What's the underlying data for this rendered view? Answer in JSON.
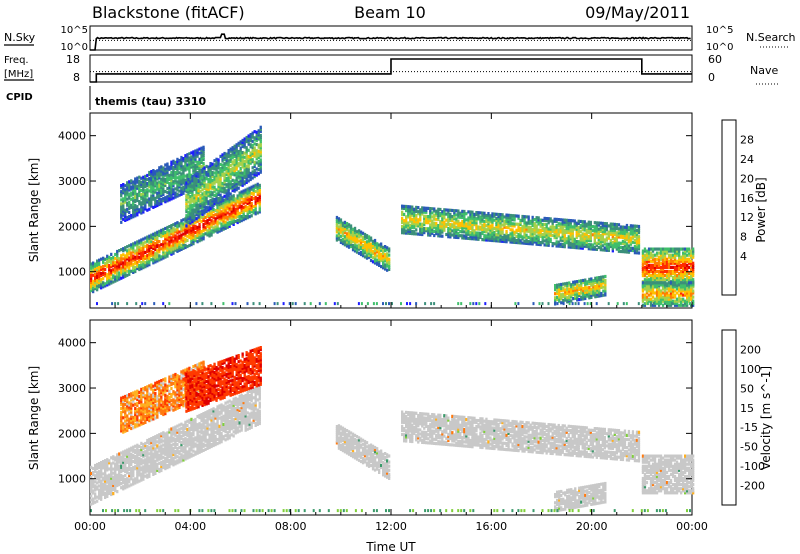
{
  "header": {
    "station": "Blackstone (fitACF)",
    "beam": "Beam 10",
    "date": "09/May/2011"
  },
  "status_panels": {
    "nsky_label": "N.Sky",
    "nsearch_label": "N.Search",
    "freq_label_1": "Freq.",
    "freq_label_2": "[MHz]",
    "nave_label": "Nave",
    "cpid_label": "CPID",
    "cpid_text": "themis (tau) 3310",
    "noise_ticks_left": [
      "10^5",
      "10^0"
    ],
    "noise_ticks_right": [
      "10^5",
      "10^0"
    ],
    "freq_ticks": [
      "18",
      "8"
    ],
    "nave_ticks": [
      "60",
      "0"
    ]
  },
  "colors": {
    "power_scale": [
      "#1d1dff",
      "#2a5ab8",
      "#3b8f7a",
      "#3fbf6b",
      "#a6d14a",
      "#ffc000",
      "#ff7f00",
      "#ff2a00",
      "#e00000"
    ],
    "velocity_scale": [
      "#1540c8",
      "#2e7fd6",
      "#3a9a6a",
      "#7fcf3a",
      "#c8c8c8",
      "#ffb020",
      "#ff7a10",
      "#ff3a00",
      "#e00000"
    ]
  },
  "chart_data": [
    {
      "type": "line",
      "title": "Blackstone (fitACF)  Beam 10  09/May/2011",
      "description_series": [
        {
          "name": "N.Sky",
          "x": [
            0,
            0.25,
            3,
            5.3,
            8,
            12,
            16,
            20,
            24
          ],
          "values": [
            1,
            300,
            300,
            400,
            300,
            300,
            300,
            300,
            300
          ]
        },
        {
          "name": "N.Search",
          "x": [
            0,
            24
          ],
          "values": [
            100,
            100
          ]
        }
      ],
      "ylim": [
        1,
        100000
      ],
      "yscale": "log"
    },
    {
      "type": "line",
      "series": [
        {
          "name": "Freq.",
          "x": [
            0,
            0.25,
            0.25,
            12.0,
            12.0,
            22.0,
            22.0,
            24
          ],
          "values": [
            8,
            8,
            11,
            11,
            16.5,
            16.5,
            11,
            11
          ]
        },
        {
          "name": "Nave",
          "x": [
            0,
            24
          ],
          "values": [
            23,
            23
          ]
        }
      ],
      "ylim_left": [
        8,
        18
      ],
      "ylim_right": [
        0,
        60
      ]
    },
    {
      "type": "heatmap",
      "quantity": "Power",
      "ylabel": "Slant Range [km]",
      "colorbar_label": "Power [dB]",
      "colorbar_ticks": [
        4,
        8,
        12,
        16,
        20,
        24,
        28
      ],
      "clim": [
        0,
        30
      ],
      "yticks": [
        1000,
        2000,
        3000,
        4000
      ],
      "ylim": [
        200,
        4500
      ],
      "xlim": [
        0,
        24
      ],
      "xticks": [
        "00:00",
        "04:00",
        "08:00",
        "12:00",
        "16:00",
        "20:00",
        "00:00"
      ],
      "echo_bands": [
        {
          "t0": 0.0,
          "t1": 6.8,
          "r0": 850,
          "r1": 2650,
          "width": 320,
          "peak_db": 28,
          "edge_db": 6
        },
        {
          "t0": 1.2,
          "t1": 4.5,
          "r0": 2500,
          "r1": 3350,
          "width": 420,
          "peak_db": 12,
          "edge_db": 4
        },
        {
          "t0": 3.8,
          "t1": 6.8,
          "r0": 2500,
          "r1": 3700,
          "width": 500,
          "peak_db": 16,
          "edge_db": 4
        },
        {
          "t0": 9.8,
          "t1": 11.9,
          "r0": 1950,
          "r1": 1250,
          "width": 260,
          "peak_db": 20,
          "edge_db": 6
        },
        {
          "t0": 12.4,
          "t1": 21.9,
          "r0": 2150,
          "r1": 1700,
          "width": 300,
          "peak_db": 18,
          "edge_db": 6
        },
        {
          "t0": 18.5,
          "t1": 20.5,
          "r0": 500,
          "r1": 700,
          "width": 220,
          "peak_db": 20,
          "edge_db": 6
        },
        {
          "t0": 22.0,
          "t1": 24.0,
          "r0": 1100,
          "r1": 1100,
          "width": 420,
          "peak_db": 26,
          "edge_db": 8
        },
        {
          "t0": 22.0,
          "t1": 24.0,
          "r0": 500,
          "r1": 500,
          "width": 250,
          "peak_db": 22,
          "edge_db": 8
        }
      ]
    },
    {
      "type": "heatmap",
      "quantity": "Velocity",
      "ylabel": "Slant Range [km]",
      "xlabel": "Time UT",
      "colorbar_label": "Velocity [m s^-1]",
      "colorbar_ticks": [
        200,
        100,
        50,
        15,
        -15,
        -50,
        -100,
        -200
      ],
      "yticks": [
        1000,
        2000,
        3000,
        4000
      ],
      "ylim": [
        200,
        4500
      ],
      "xlim": [
        0,
        24
      ],
      "xticks": [
        "00:00",
        "04:00",
        "08:00",
        "12:00",
        "16:00",
        "20:00",
        "00:00"
      ],
      "echo_bands": [
        {
          "t0": 0.0,
          "t1": 6.8,
          "r0": 850,
          "r1": 2650,
          "width": 420,
          "velocity": 0
        },
        {
          "t0": 1.2,
          "t1": 4.5,
          "r0": 2400,
          "r1": 3200,
          "width": 400,
          "velocity": -60
        },
        {
          "t0": 3.8,
          "t1": 6.8,
          "r0": 2900,
          "r1": 3500,
          "width": 420,
          "velocity": -180
        },
        {
          "t0": 9.8,
          "t1": 11.9,
          "r0": 1950,
          "r1": 1250,
          "width": 260,
          "velocity": 0
        },
        {
          "t0": 12.4,
          "t1": 21.9,
          "r0": 2150,
          "r1": 1700,
          "width": 320,
          "velocity": 0
        },
        {
          "t0": 18.5,
          "t1": 20.5,
          "r0": 500,
          "r1": 700,
          "width": 220,
          "velocity": 0
        },
        {
          "t0": 22.0,
          "t1": 24.0,
          "r0": 1100,
          "r1": 1100,
          "width": 420,
          "velocity": 0
        }
      ]
    }
  ]
}
